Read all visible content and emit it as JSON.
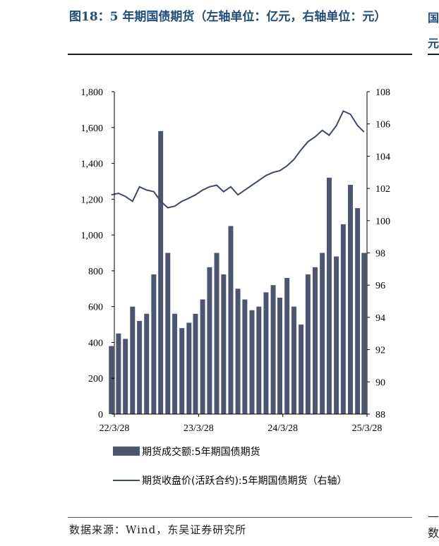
{
  "title": "图18：5 年期国债期货（左轴单位：亿元，右轴单位：元）",
  "source": "数据来源：Wind，东吴证券研究所",
  "edge_fragments": [
    "国",
    "元",
    "—",
    "数"
  ],
  "colors": {
    "bars": "#4d5670",
    "line": "#3f4a63",
    "title": "#1f4e79"
  },
  "chart_data": {
    "type": "bar+line",
    "x_tick_labels": [
      "22/3/28",
      "23/3/28",
      "24/3/28",
      "25/3/28"
    ],
    "x_range": [
      "2022-03-28",
      "2025-03-28"
    ],
    "y_left": {
      "range": [
        0,
        1800
      ],
      "ticks": [
        "0",
        "200",
        "400",
        "600",
        "800",
        "1,000",
        "1,200",
        "1,400",
        "1,600",
        "1,800"
      ]
    },
    "y_right": {
      "range": [
        88,
        108
      ],
      "ticks": [
        "88",
        "90",
        "92",
        "94",
        "96",
        "98",
        "100",
        "102",
        "104",
        "106",
        "108"
      ]
    },
    "legend_position": "bottom",
    "series": [
      {
        "name": "期货成交额:5年期国债期货",
        "kind": "bar",
        "axis": "left",
        "x": [
          "2022-03",
          "2022-04",
          "2022-05",
          "2022-06",
          "2022-07",
          "2022-08",
          "2022-09",
          "2022-10",
          "2022-11",
          "2022-12",
          "2023-01",
          "2023-02",
          "2023-03",
          "2023-04",
          "2023-05",
          "2023-06",
          "2023-07",
          "2023-08",
          "2023-09",
          "2023-10",
          "2023-11",
          "2023-12",
          "2024-01",
          "2024-02",
          "2024-03",
          "2024-04",
          "2024-05",
          "2024-06",
          "2024-07",
          "2024-08",
          "2024-09",
          "2024-10",
          "2024-11",
          "2024-12",
          "2025-01",
          "2025-02",
          "2025-03"
        ],
        "values": [
          380,
          450,
          420,
          600,
          520,
          560,
          780,
          1580,
          900,
          560,
          480,
          510,
          560,
          640,
          820,
          900,
          780,
          1050,
          700,
          640,
          580,
          600,
          680,
          720,
          650,
          760,
          600,
          500,
          780,
          820,
          900,
          1320,
          880,
          1060,
          1280,
          1150,
          900
        ]
      },
      {
        "name": "期货收盘价(活跃合约):5年期国债期货（右轴）",
        "kind": "line",
        "axis": "right",
        "x": [
          "2022-03",
          "2022-04",
          "2022-05",
          "2022-06",
          "2022-07",
          "2022-08",
          "2022-09",
          "2022-10",
          "2022-11",
          "2022-12",
          "2023-01",
          "2023-02",
          "2023-03",
          "2023-04",
          "2023-05",
          "2023-06",
          "2023-07",
          "2023-08",
          "2023-09",
          "2023-10",
          "2023-11",
          "2023-12",
          "2024-01",
          "2024-02",
          "2024-03",
          "2024-04",
          "2024-05",
          "2024-06",
          "2024-07",
          "2024-08",
          "2024-09",
          "2024-10",
          "2024-11",
          "2024-12",
          "2025-01",
          "2025-02",
          "2025-03"
        ],
        "values": [
          101.6,
          101.7,
          101.5,
          101.2,
          102.1,
          101.9,
          101.8,
          101.2,
          100.8,
          100.9,
          101.2,
          101.4,
          101.6,
          101.9,
          102.1,
          102.2,
          101.8,
          102.1,
          101.6,
          101.9,
          102.2,
          102.5,
          102.8,
          103.0,
          103.1,
          103.4,
          103.8,
          104.4,
          104.9,
          105.2,
          105.6,
          105.3,
          105.9,
          106.8,
          106.6,
          105.9,
          105.5
        ]
      }
    ]
  }
}
